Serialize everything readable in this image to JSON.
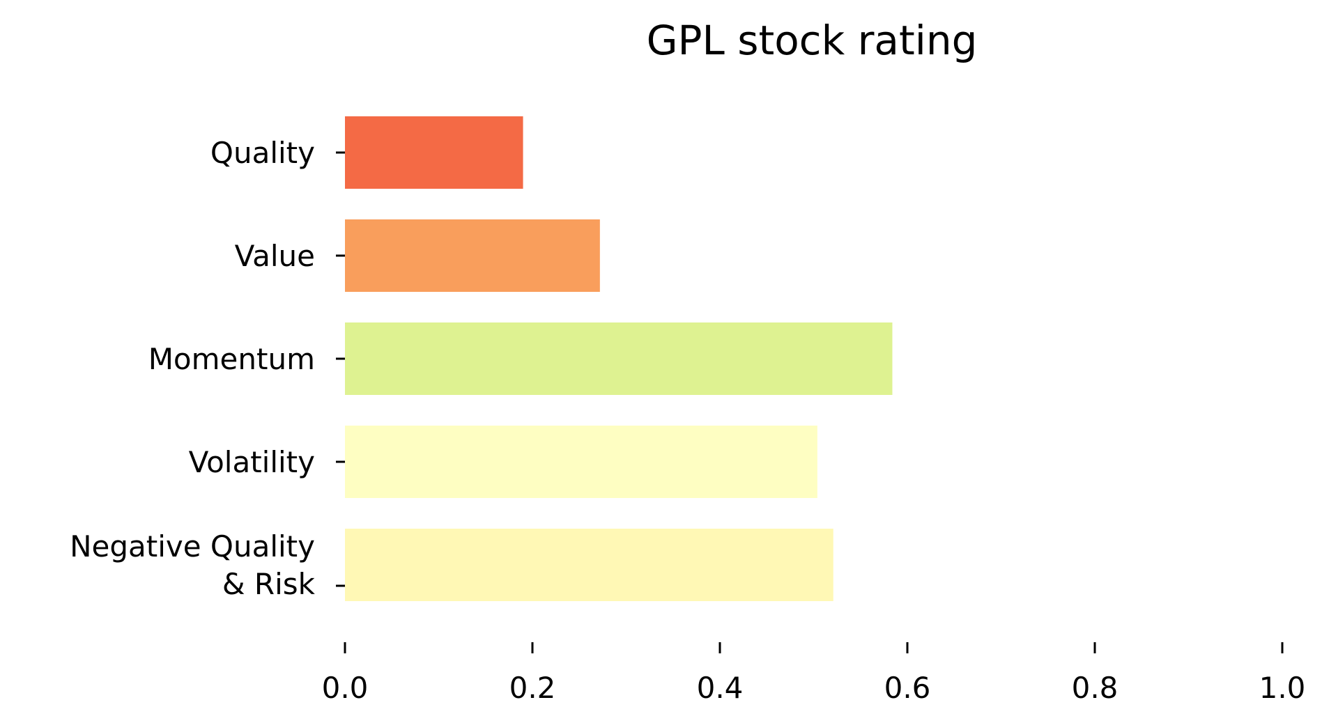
{
  "chart_data": {
    "type": "bar",
    "orientation": "horizontal",
    "title": "GPL stock rating",
    "xlabel": "",
    "ylabel": "",
    "xlim": [
      0,
      1.0
    ],
    "x_ticks": [
      "0.0",
      "0.2",
      "0.4",
      "0.6",
      "0.8",
      "1.0"
    ],
    "grid": false,
    "categories": [
      [
        "Quality"
      ],
      [
        "Value"
      ],
      [
        "Momentum"
      ],
      [
        "Volatility"
      ],
      [
        "Negative Quality",
        "& Risk"
      ]
    ],
    "values": [
      0.19,
      0.272,
      0.584,
      0.504,
      0.521
    ],
    "colors": [
      "#f46a45",
      "#f99e5c",
      "#def291",
      "#fefec2",
      "#fff8b5"
    ]
  }
}
